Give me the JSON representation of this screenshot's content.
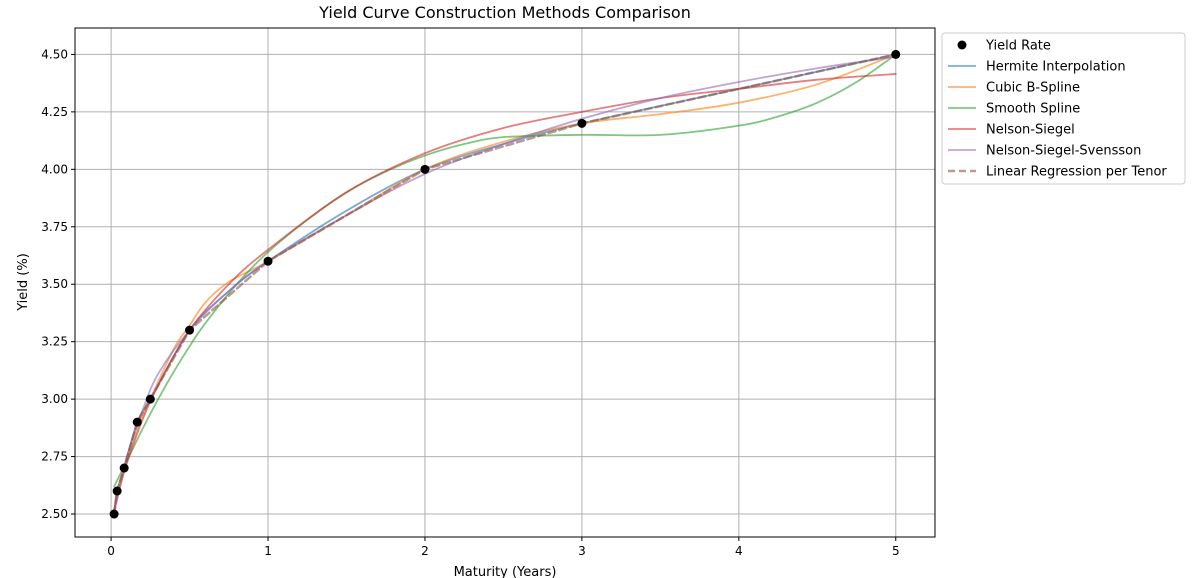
{
  "chart_data": {
    "type": "line",
    "title": "Yield Curve Construction Methods Comparison",
    "xlabel": "Maturity (Years)",
    "ylabel": "Yield (%)",
    "xlim": [
      -0.23,
      5.25
    ],
    "ylim": [
      2.4,
      4.615
    ],
    "xticks": [
      0,
      1,
      2,
      3,
      4,
      5
    ],
    "xtick_labels": [
      "0",
      "1",
      "2",
      "3",
      "4",
      "5"
    ],
    "yticks": [
      2.5,
      2.75,
      3.0,
      3.25,
      3.5,
      3.75,
      4.0,
      4.25,
      4.5
    ],
    "ytick_labels": [
      "2.50",
      "2.75",
      "3.00",
      "3.25",
      "3.50",
      "3.75",
      "4.00",
      "4.25",
      "4.50"
    ],
    "grid": true,
    "legend_position": "outside-right-top",
    "points": {
      "name": "Yield Rate",
      "color": "#000000",
      "x": [
        0.0192,
        0.0385,
        0.0833,
        0.1667,
        0.25,
        0.5,
        1,
        2,
        3,
        5
      ],
      "y": [
        2.5,
        2.6,
        2.7,
        2.9,
        3.0,
        3.3,
        3.6,
        4.0,
        4.2,
        4.5
      ]
    },
    "series": [
      {
        "name": "Hermite Interpolation",
        "color": "#1f77b4",
        "style": "solid",
        "x": [
          0.0192,
          0.0385,
          0.0833,
          0.1667,
          0.25,
          0.5,
          0.75,
          1,
          1.5,
          2,
          2.5,
          3,
          4,
          5
        ],
        "y": [
          2.5,
          2.6,
          2.7,
          2.9,
          3.0,
          3.3,
          3.47,
          3.6,
          3.82,
          4.0,
          4.11,
          4.2,
          4.35,
          4.5
        ]
      },
      {
        "name": "Cubic B-Spline",
        "color": "#ff7f0e",
        "style": "solid",
        "x": [
          0.0192,
          0.0385,
          0.0833,
          0.1667,
          0.25,
          0.4,
          0.5,
          0.6,
          0.75,
          1,
          1.5,
          2,
          2.5,
          3,
          3.5,
          4,
          4.5,
          5
        ],
        "y": [
          2.5,
          2.6,
          2.7,
          2.87,
          3.0,
          3.22,
          3.32,
          3.42,
          3.51,
          3.6,
          3.8,
          4.0,
          4.12,
          4.2,
          4.24,
          4.29,
          4.37,
          4.5
        ]
      },
      {
        "name": "Smooth Spline",
        "color": "#2ca02c",
        "style": "solid",
        "x": [
          0.0192,
          0.1,
          0.2,
          0.3,
          0.4,
          0.5,
          0.6,
          0.8,
          1,
          1.25,
          1.5,
          1.75,
          2,
          2.25,
          2.5,
          3,
          3.5,
          4,
          4.25,
          4.5,
          4.75,
          5
        ],
        "y": [
          2.62,
          2.73,
          2.87,
          3.0,
          3.12,
          3.23,
          3.33,
          3.5,
          3.64,
          3.78,
          3.9,
          3.99,
          4.06,
          4.11,
          4.14,
          4.15,
          4.15,
          4.19,
          4.23,
          4.29,
          4.38,
          4.5
        ]
      },
      {
        "name": "Nelson-Siegel",
        "color": "#d62728",
        "style": "solid",
        "x": [
          0.0192,
          0.05,
          0.1,
          0.2,
          0.3,
          0.5,
          0.75,
          1,
          1.5,
          2,
          2.5,
          3,
          3.5,
          4,
          4.5,
          5
        ],
        "y": [
          2.52,
          2.6,
          2.72,
          2.91,
          3.06,
          3.3,
          3.5,
          3.65,
          3.9,
          4.07,
          4.18,
          4.25,
          4.31,
          4.35,
          4.39,
          4.415
        ]
      },
      {
        "name": "Nelson-Siegel-Svensson",
        "color": "#9467bd",
        "style": "solid",
        "x": [
          0.0192,
          0.05,
          0.1,
          0.2,
          0.3,
          0.5,
          0.75,
          1,
          1.5,
          2,
          2.5,
          3,
          3.5,
          4,
          4.5,
          5
        ],
        "y": [
          2.5,
          2.6,
          2.75,
          2.95,
          3.11,
          3.3,
          3.47,
          3.6,
          3.8,
          3.98,
          4.11,
          4.22,
          4.31,
          4.38,
          4.44,
          4.49
        ]
      },
      {
        "name": "Linear Regression per Tenor",
        "color": "#8c564b",
        "style": "dashed",
        "x": [
          0.0192,
          0.0385,
          0.0833,
          0.1667,
          0.25,
          0.5,
          1,
          2,
          3,
          5
        ],
        "y": [
          2.5,
          2.6,
          2.7,
          2.9,
          3.0,
          3.3,
          3.6,
          4.0,
          4.2,
          4.5
        ]
      }
    ]
  }
}
